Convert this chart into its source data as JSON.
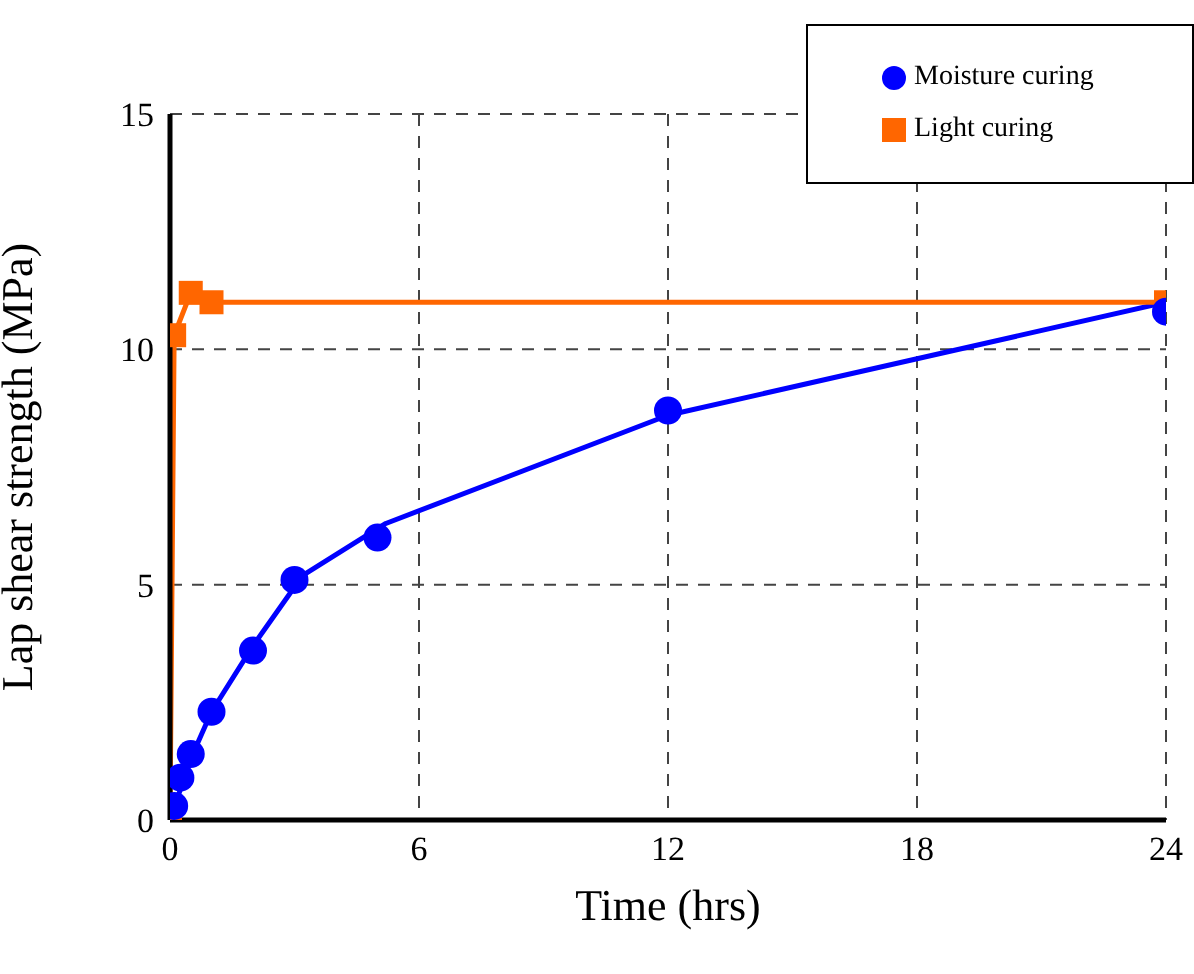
{
  "chart_data": {
    "type": "line",
    "xlabel": "Time (hrs)",
    "ylabel": "Lap shear strength (MPa)",
    "xlim": [
      0,
      24
    ],
    "xticks": [
      0,
      6,
      12,
      18,
      24
    ],
    "ylim": [
      0,
      15
    ],
    "yticks": [
      0,
      5,
      10,
      15
    ],
    "grid": true,
    "legend": "top right",
    "series": [
      {
        "name": "Moisture curing",
        "type": "scatter",
        "color": "#0000ff",
        "marker": "circle",
        "x": [
          0.1,
          0.25,
          0.5,
          1,
          2,
          3,
          5,
          12,
          24
        ],
        "values": [
          0.3,
          0.9,
          1.4,
          2.3,
          3.6,
          5.1,
          6.0,
          8.7,
          10.8
        ]
      },
      {
        "color": "#0000ff",
        "marker": "none",
        "x": [
          0,
          0.5,
          1,
          2,
          3.2,
          5.2,
          12,
          24
        ],
        "values": [
          0,
          1.3,
          2.3,
          3.7,
          5.2,
          6.3,
          8.6,
          11.0
        ]
      },
      {
        "name": "Light curing",
        "color": "#ff6600",
        "marker": "square",
        "x": [
          0,
          0.1,
          0.5,
          1,
          24
        ],
        "values": [
          0,
          10.3,
          11.2,
          11.0,
          11.0
        ]
      }
    ]
  }
}
